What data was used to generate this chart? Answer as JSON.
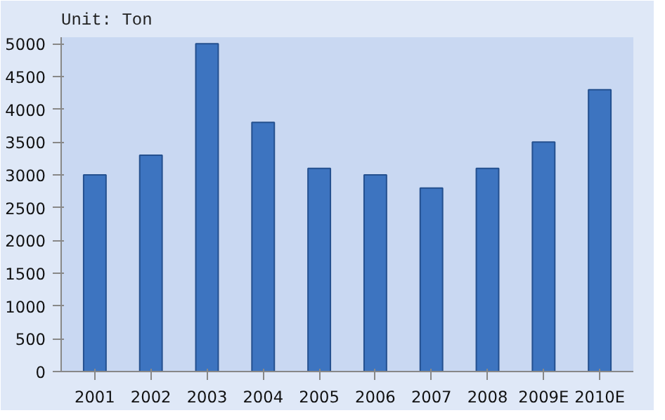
{
  "chart_data": {
    "type": "bar",
    "title": "Unit: Ton",
    "categories": [
      "2001",
      "2002",
      "2003",
      "2004",
      "2005",
      "2006",
      "2007",
      "2008",
      "2009E",
      "2010E"
    ],
    "values": [
      3000,
      3300,
      5000,
      3800,
      3100,
      3000,
      2800,
      3100,
      3500,
      4300
    ],
    "color": "#3d74c0",
    "ylim": [
      0,
      5000
    ],
    "yticks": [
      0,
      500,
      1000,
      1500,
      2000,
      2500,
      3000,
      3500,
      4000,
      4500,
      5000
    ],
    "grid": false
  }
}
